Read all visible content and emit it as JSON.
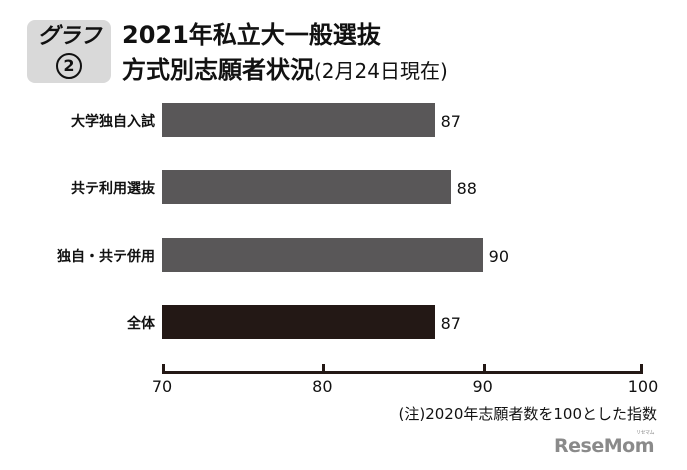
{
  "header": {
    "badge_label": "グラフ",
    "badge_number": "2",
    "title_line1": "2021年私立大一般選抜",
    "title_line2": "方式別志願者状況",
    "title_sub": "(2月24日現在)"
  },
  "chart_data": {
    "type": "bar",
    "orientation": "horizontal",
    "title": "2021年私立大一般選抜 方式別志願者状況(2月24日現在)",
    "categories": [
      "大学独自入試",
      "共テ利用選抜",
      "独自・共テ併用",
      "全体"
    ],
    "values": [
      87,
      88,
      90,
      87
    ],
    "bar_colors": [
      "#595758",
      "#595758",
      "#595758",
      "#231815"
    ],
    "value_labels": [
      "87",
      "88",
      "90",
      "87"
    ],
    "xlim": [
      70,
      100
    ],
    "xticks": [
      70,
      80,
      90,
      100
    ],
    "xtick_labels": [
      "70",
      "80",
      "90",
      "100"
    ],
    "xlabel": "",
    "ylabel": "",
    "grid": false,
    "annotation": "(注)2020年志願者数を100とした指数"
  },
  "footer": {
    "note": "(注)2020年志願者数を100とした指数",
    "logo_text": "ReseMom",
    "logo_kana": "リセマム"
  }
}
